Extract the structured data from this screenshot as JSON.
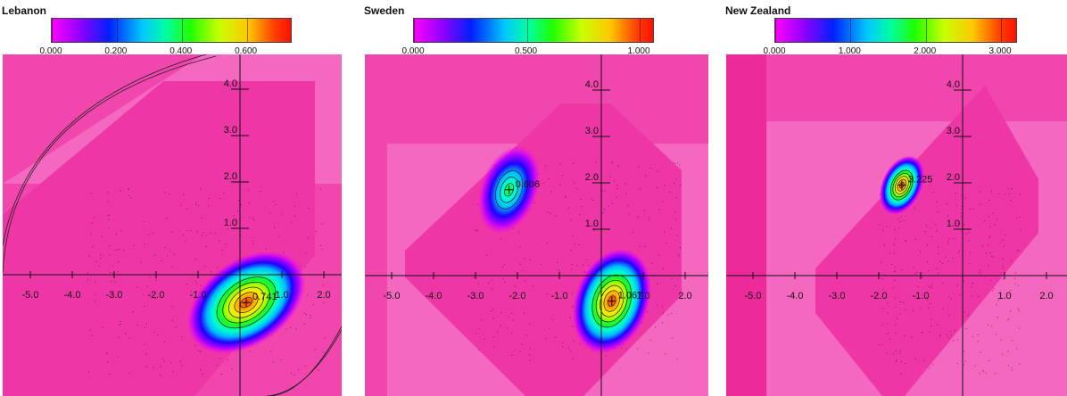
{
  "colors": {
    "pink": "#f046ad",
    "pink_light": "#f468c0",
    "pink_mid": "#ee36a6",
    "pink_dark": "#ec2a9a"
  },
  "chart_data": [
    {
      "type": "heatmap",
      "title": "Lebanon",
      "colorbar": {
        "range": [
          0.0,
          0.741
        ],
        "tick_labels": [
          "0.000",
          "0.200",
          "0.400",
          "0.600"
        ],
        "tick_values": [
          0.0,
          0.2,
          0.4,
          0.6
        ]
      },
      "x_tick_labels": [
        "-5.0",
        "-4.0",
        "-3.0",
        "-2.0",
        "-1.0",
        "1.0",
        "2.0"
      ],
      "x_tick_values": [
        -5,
        -4,
        -3,
        -2,
        -1,
        1,
        2
      ],
      "y_tick_labels": [
        "1.0",
        "2.0",
        "3.0",
        "4.0"
      ],
      "y_tick_values": [
        1,
        2,
        3,
        4
      ],
      "xlim": [
        -5.6,
        2.3
      ],
      "ylim": [
        -2.6,
        4.5
      ],
      "peaks": [
        {
          "x": 0.15,
          "y": -0.6,
          "value": 0.741,
          "label": "0.741"
        }
      ]
    },
    {
      "type": "heatmap",
      "title": "Sweden",
      "colorbar": {
        "range": [
          0.0,
          1.067
        ],
        "tick_labels": [
          "0.000",
          "0.500",
          "1.000"
        ],
        "tick_values": [
          0.0,
          0.5,
          1.0
        ]
      },
      "x_tick_labels": [
        "-5.0",
        "-4.0",
        "-3.0",
        "-2.0",
        "-1.0",
        "1.0",
        "2.0"
      ],
      "x_tick_values": [
        -5,
        -4,
        -3,
        -2,
        -1,
        1,
        2
      ],
      "y_tick_labels": [
        "1.0",
        "2.0",
        "3.0",
        "4.0"
      ],
      "y_tick_values": [
        1,
        2,
        3,
        4
      ],
      "xlim": [
        -5.6,
        2.3
      ],
      "ylim": [
        -2.6,
        4.5
      ],
      "peaks": [
        {
          "x": -2.2,
          "y": 1.85,
          "value": 0.606,
          "label": "0.606"
        },
        {
          "x": 0.25,
          "y": -0.55,
          "value": 1.067,
          "label": "1.067"
        }
      ]
    },
    {
      "type": "heatmap",
      "title": "New Zealand",
      "colorbar": {
        "range": [
          0.0,
          3.225
        ],
        "tick_labels": [
          "0.000",
          "1.000",
          "2.000",
          "3.000"
        ],
        "tick_values": [
          0.0,
          1.0,
          2.0,
          3.0
        ]
      },
      "x_tick_labels": [
        "-5.0",
        "-4.0",
        "-3.0",
        "-2.0",
        "-1.0",
        "1.0",
        "2.0"
      ],
      "x_tick_values": [
        -5,
        -4,
        -3,
        -2,
        -1,
        1,
        2
      ],
      "y_tick_labels": [
        "1.0",
        "2.0",
        "3.0",
        "4.0"
      ],
      "y_tick_values": [
        1,
        2,
        3,
        4
      ],
      "xlim": [
        -5.6,
        2.3
      ],
      "ylim": [
        -2.6,
        4.5
      ],
      "peaks": [
        {
          "x": -1.45,
          "y": 1.95,
          "value": 3.225,
          "label": "3.225"
        }
      ]
    }
  ]
}
